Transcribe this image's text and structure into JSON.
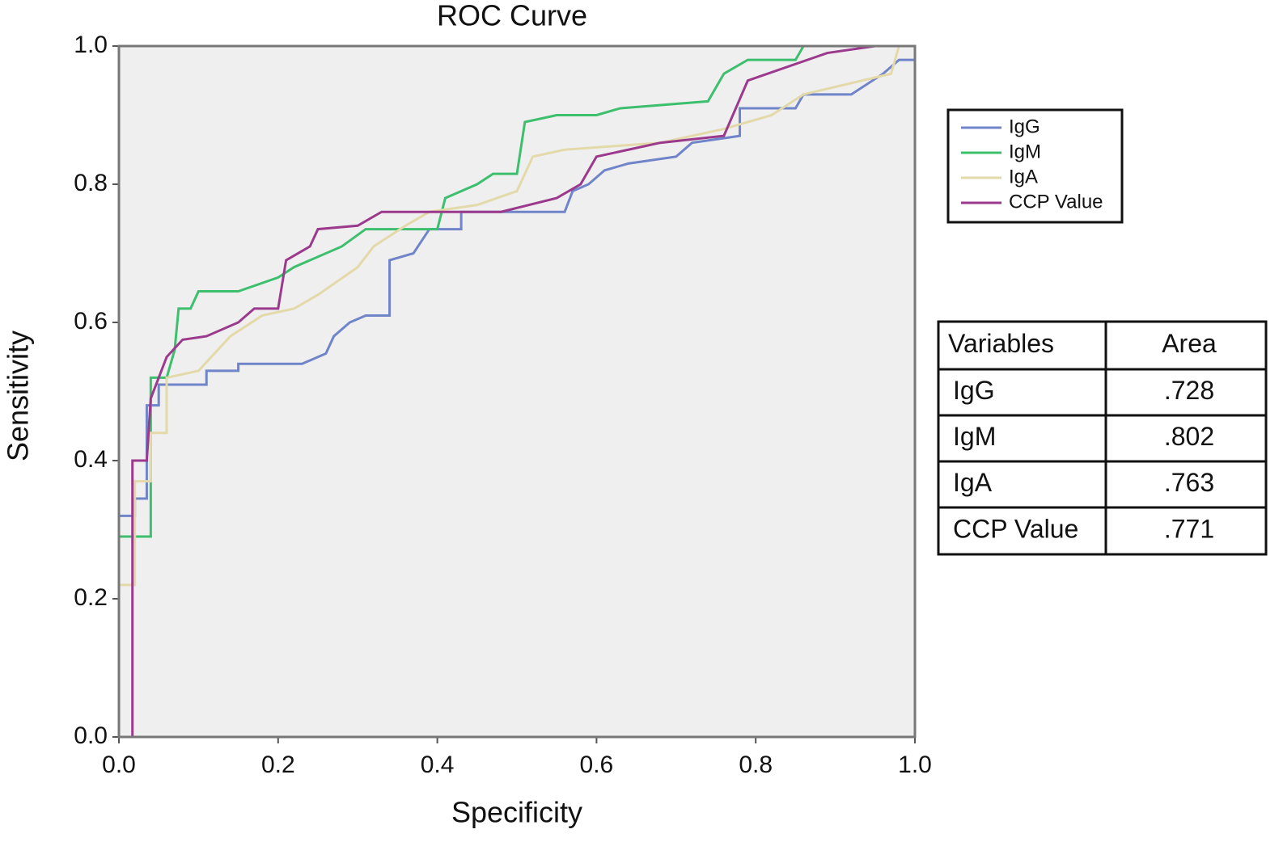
{
  "chart_data": {
    "type": "line",
    "title": "ROC Curve",
    "x_label": "Specificity",
    "y_label": "Sensitivity",
    "xlim": [
      0,
      1
    ],
    "ylim": [
      0,
      1
    ],
    "grid": false,
    "legend": "right",
    "background": "#efefef",
    "xticks": [
      {
        "value": 0,
        "label": "0.0"
      },
      {
        "value": 0.2,
        "label": "0.2"
      },
      {
        "value": 0.4,
        "label": "0.4"
      },
      {
        "value": 0.6,
        "label": "0.6"
      },
      {
        "value": 0.8,
        "label": "0.8"
      },
      {
        "value": 1,
        "label": "1.0"
      }
    ],
    "yticks": [
      {
        "value": 0,
        "label": "0.0"
      },
      {
        "value": 0.2,
        "label": "0.2"
      },
      {
        "value": 0.4,
        "label": "0.4"
      },
      {
        "value": 0.6,
        "label": "0.6"
      },
      {
        "value": 0.8,
        "label": "0.8"
      },
      {
        "value": 1,
        "label": "1.0"
      }
    ],
    "series": [
      {
        "name": "IgG",
        "color": "#7085c9",
        "x": [
          0,
          0,
          0.02,
          0.02,
          0.035,
          0.035,
          0.05,
          0.05,
          0.11,
          0.11,
          0.15,
          0.15,
          0.23,
          0.26,
          0.27,
          0.29,
          0.31,
          0.34,
          0.34,
          0.37,
          0.39,
          0.43,
          0.43,
          0.56,
          0.57,
          0.59,
          0.61,
          0.64,
          0.7,
          0.72,
          0.78,
          0.78,
          0.85,
          0.86,
          0.92,
          0.96,
          0.98,
          1,
          1
        ],
        "values": [
          0,
          0.32,
          0.32,
          0.345,
          0.345,
          0.48,
          0.48,
          0.51,
          0.51,
          0.53,
          0.53,
          0.54,
          0.54,
          0.555,
          0.58,
          0.6,
          0.61,
          0.61,
          0.69,
          0.7,
          0.735,
          0.735,
          0.76,
          0.76,
          0.79,
          0.8,
          0.82,
          0.83,
          0.84,
          0.86,
          0.87,
          0.91,
          0.91,
          0.93,
          0.93,
          0.96,
          0.98,
          0.98,
          1
        ]
      },
      {
        "name": "IgM",
        "color": "#3dbf6e",
        "x": [
          0,
          0,
          0.04,
          0.04,
          0.06,
          0.07,
          0.075,
          0.09,
          0.1,
          0.15,
          0.2,
          0.22,
          0.28,
          0.31,
          0.4,
          0.41,
          0.45,
          0.47,
          0.5,
          0.51,
          0.55,
          0.6,
          0.63,
          0.74,
          0.76,
          0.79,
          0.85,
          0.86,
          1
        ],
        "values": [
          0,
          0.29,
          0.29,
          0.52,
          0.52,
          0.56,
          0.62,
          0.62,
          0.645,
          0.645,
          0.665,
          0.68,
          0.71,
          0.735,
          0.735,
          0.78,
          0.8,
          0.815,
          0.815,
          0.89,
          0.9,
          0.9,
          0.91,
          0.92,
          0.96,
          0.98,
          0.98,
          1,
          1
        ]
      },
      {
        "name": "IgA",
        "color": "#e3d9a9",
        "x": [
          0,
          0,
          0.02,
          0.02,
          0.04,
          0.04,
          0.06,
          0.06,
          0.1,
          0.14,
          0.18,
          0.22,
          0.25,
          0.3,
          0.32,
          0.36,
          0.39,
          0.45,
          0.5,
          0.52,
          0.56,
          0.68,
          0.76,
          0.82,
          0.86,
          0.97,
          0.98,
          1
        ],
        "values": [
          0,
          0.22,
          0.22,
          0.37,
          0.37,
          0.44,
          0.44,
          0.52,
          0.53,
          0.58,
          0.61,
          0.62,
          0.64,
          0.68,
          0.71,
          0.74,
          0.76,
          0.77,
          0.79,
          0.84,
          0.85,
          0.86,
          0.88,
          0.9,
          0.93,
          0.96,
          1,
          1
        ]
      },
      {
        "name": "CCP Value",
        "color": "#9b3a8c",
        "x": [
          0.017,
          0.017,
          0.035,
          0.04,
          0.06,
          0.08,
          0.11,
          0.15,
          0.17,
          0.2,
          0.21,
          0.24,
          0.25,
          0.3,
          0.33,
          0.48,
          0.55,
          0.58,
          0.6,
          0.64,
          0.68,
          0.76,
          0.79,
          0.89,
          0.95,
          1
        ],
        "values": [
          0,
          0.4,
          0.4,
          0.49,
          0.55,
          0.575,
          0.58,
          0.6,
          0.62,
          0.62,
          0.69,
          0.71,
          0.735,
          0.74,
          0.76,
          0.76,
          0.78,
          0.8,
          0.84,
          0.85,
          0.86,
          0.87,
          0.95,
          0.99,
          1,
          1
        ]
      }
    ]
  },
  "table": {
    "header": [
      "Variables",
      "Area"
    ],
    "rows": [
      [
        "IgG",
        ".728"
      ],
      [
        "IgM",
        ".802"
      ],
      [
        "IgA",
        ".763"
      ],
      [
        "CCP Value",
        ".771"
      ]
    ]
  }
}
